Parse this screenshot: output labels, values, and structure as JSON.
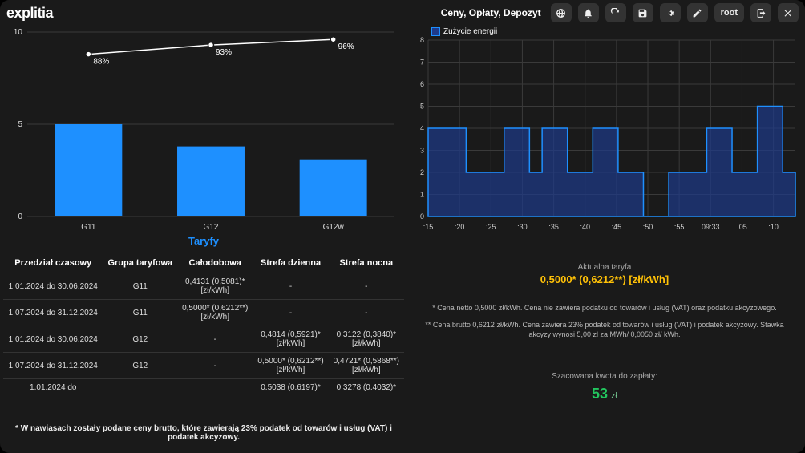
{
  "header": {
    "logo": "explitia",
    "breadcrumb": "Ceny, Opłaty, Depozyt",
    "icons": [
      "globe",
      "bell",
      "refresh",
      "save",
      "gear",
      "edit"
    ],
    "user_label": "root"
  },
  "colors": {
    "bg": "#1a1a1a",
    "bar": "#1e90ff",
    "line": "#ffffff",
    "grid": "#3a3a3a",
    "axis_text": "#dddddd",
    "area_fill": "#1e3a8a",
    "area_stroke": "#1e90ff",
    "accent_amber": "#ffc107",
    "accent_green": "#22c55e"
  },
  "chart1": {
    "type": "bar+line",
    "title": "Taryfy",
    "title_fontsize": 13,
    "categories": [
      "G11",
      "G12",
      "G12w"
    ],
    "bar_values": [
      5.0,
      3.8,
      3.1
    ],
    "line_values": [
      8.8,
      9.3,
      9.6
    ],
    "line_labels": [
      "88%",
      "93%",
      "96%"
    ],
    "ylim": [
      0,
      10
    ],
    "yticks": [
      0,
      5,
      10
    ],
    "bar_color": "#1e90ff",
    "line_color": "#ffffff",
    "grid_color": "#3a3a3a",
    "bar_width": 0.55
  },
  "chart2": {
    "type": "area",
    "legend_label": "Zużycie energii",
    "ylim": [
      0,
      8
    ],
    "yticks": [
      0,
      1,
      2,
      3,
      4,
      5,
      6,
      7,
      8
    ],
    "xticks": [
      ":15",
      ":20",
      ":25",
      ":30",
      ":35",
      ":40",
      ":45",
      ":50",
      ":55",
      "09:33",
      ":05",
      ":10"
    ],
    "values": [
      4,
      4,
      4,
      2,
      2,
      2,
      4,
      4,
      2,
      4,
      4,
      2,
      2,
      4,
      4,
      2,
      2,
      0,
      0,
      2,
      2,
      2,
      4,
      4,
      2,
      2,
      5,
      5,
      2,
      2
    ],
    "fill_color": "#1e3a8a",
    "stroke_color": "#1e90ff",
    "grid_color": "#3a3a3a"
  },
  "table": {
    "columns": [
      "Przedział czasowy",
      "Grupa taryfowa",
      "Całodobowa",
      "Strefa dzienna",
      "Strefa nocna"
    ],
    "rows": [
      [
        "1.01.2024 do 30.06.2024",
        "G11",
        "0,4131 (0,5081)*\n[zł/kWh]",
        "-",
        "-"
      ],
      [
        "1.07.2024 do 31.12.2024",
        "G11",
        "0,5000* (0,6212**)\n[zł/kWh]",
        "-",
        "-"
      ],
      [
        "1.01.2024 do 30.06.2024",
        "G12",
        "-",
        "0,4814 (0,5921)*\n[zł/kWh]",
        "0,3122 (0,3840)*\n[zł/kWh]"
      ],
      [
        "1.07.2024 do 31.12.2024",
        "G12",
        "-",
        "0,5000* (0,6212**)\n[zł/kWh]",
        "0,4721* (0,5868**)\n[zł/kWh]"
      ],
      [
        "1.01.2024 do",
        "",
        "",
        "0.5038 (0.6197)*",
        "0.3278 (0.4032)*"
      ]
    ],
    "footnote": "* W nawiasach zostały podane ceny brutto, które zawierają 23% podatek od towarów i usług (VAT) i podatek akcyzowy."
  },
  "right": {
    "tariff_label": "Aktualna taryfa",
    "tariff_value": "0,5000* (0,6212**) [zł/kWh]",
    "note1": "* Cena netto 0,5000 zł/kWh. Cena nie zawiera podatku od towarów i usług (VAT) oraz podatku akcyzowego.",
    "note2": "** Cena brutto 0,6212 zł/kWh. Cena zawiera 23% podatek od towarów i usług (VAT) i podatek akcyzowy. Stawka akcyzy wynosi 5,00 zł za MWh/ 0,0050 zł/ kWh.",
    "est_label": "Szacowana kwota do zapłaty:",
    "est_value": "53",
    "est_unit": "zł"
  }
}
